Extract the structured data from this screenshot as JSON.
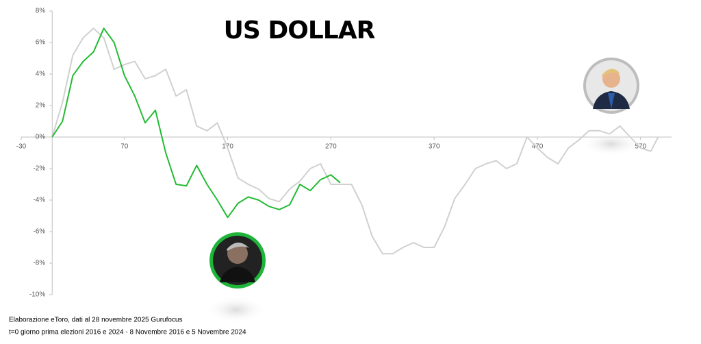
{
  "chart_data": {
    "type": "line",
    "title": "US DOLLAR",
    "notes": [
      "Elaborazione eToro, dati al 28 novembre 2025 Gurufocus",
      "t=0 giorno prima elezioni 2016 e 2024 - 8 Novembre 2016 e 5 Novembre 2024"
    ],
    "xlim": [
      -30,
      600
    ],
    "xticks": [
      -30,
      70,
      170,
      270,
      370,
      470,
      570
    ],
    "ylim": [
      -10,
      8
    ],
    "yticks": [
      {
        "value": 8,
        "label": "8%"
      },
      {
        "value": 6,
        "label": "6%"
      },
      {
        "value": 4,
        "label": "4%"
      },
      {
        "value": 2,
        "label": "2%"
      },
      {
        "value": 0,
        "label": "0%"
      },
      {
        "value": -2,
        "label": "-2%"
      },
      {
        "value": -4,
        "label": "-4%"
      },
      {
        "value": -6,
        "label": "-6%"
      },
      {
        "value": -8,
        "label": "-8%"
      },
      {
        "value": -10,
        "label": "-10%"
      }
    ],
    "series": [
      {
        "color": "#d0d0d0",
        "x": [
          0,
          10,
          20,
          30,
          40,
          50,
          60,
          70,
          80,
          90,
          100,
          110,
          120,
          130,
          140,
          150,
          160,
          170,
          180,
          190,
          200,
          210,
          220,
          230,
          240,
          250,
          260,
          270,
          280,
          290,
          300,
          310,
          320,
          330,
          340,
          350,
          360,
          370,
          380,
          390,
          400,
          410,
          420,
          430,
          440,
          450,
          460,
          470,
          480,
          490,
          500,
          510,
          520,
          530,
          540,
          550,
          560,
          570,
          580,
          587
        ],
        "values": [
          0,
          2.2,
          5.2,
          6.3,
          6.9,
          6.3,
          4.3,
          4.6,
          4.8,
          3.7,
          3.9,
          4.3,
          2.6,
          3.0,
          0.7,
          0.4,
          0.9,
          -0.7,
          -2.6,
          -3.0,
          -3.3,
          -3.9,
          -4.1,
          -3.3,
          -2.8,
          -2.0,
          -1.7,
          -3.0,
          -3.0,
          -3.0,
          -4.3,
          -6.3,
          -7.4,
          -7.4,
          -7.0,
          -6.7,
          -7.0,
          -7.0,
          -5.7,
          -3.9,
          -3.0,
          -2.0,
          -1.7,
          -1.5,
          -2.0,
          -1.7,
          0,
          -0.7,
          -1.3,
          -1.7,
          -0.7,
          -0.2,
          0.4,
          0.4,
          0.2,
          0.7,
          0,
          -0.7,
          -0.9,
          0
        ]
      },
      {
        "color": "#22bb33",
        "x": [
          0,
          10,
          20,
          30,
          40,
          50,
          60,
          70,
          80,
          90,
          100,
          110,
          120,
          130,
          140,
          150,
          160,
          170,
          180,
          190,
          200,
          210,
          220,
          230,
          240,
          250,
          260,
          270,
          279
        ],
        "values": [
          0,
          1.0,
          3.9,
          4.8,
          5.4,
          6.9,
          6.0,
          3.9,
          2.6,
          0.9,
          1.7,
          -1.0,
          -3.0,
          -3.1,
          -1.8,
          -3.0,
          -4.0,
          -5.1,
          -4.2,
          -3.8,
          -4.0,
          -4.4,
          -4.6,
          -4.3,
          -3.0,
          -3.4,
          -2.7,
          -2.4,
          -2.9
        ]
      }
    ]
  }
}
